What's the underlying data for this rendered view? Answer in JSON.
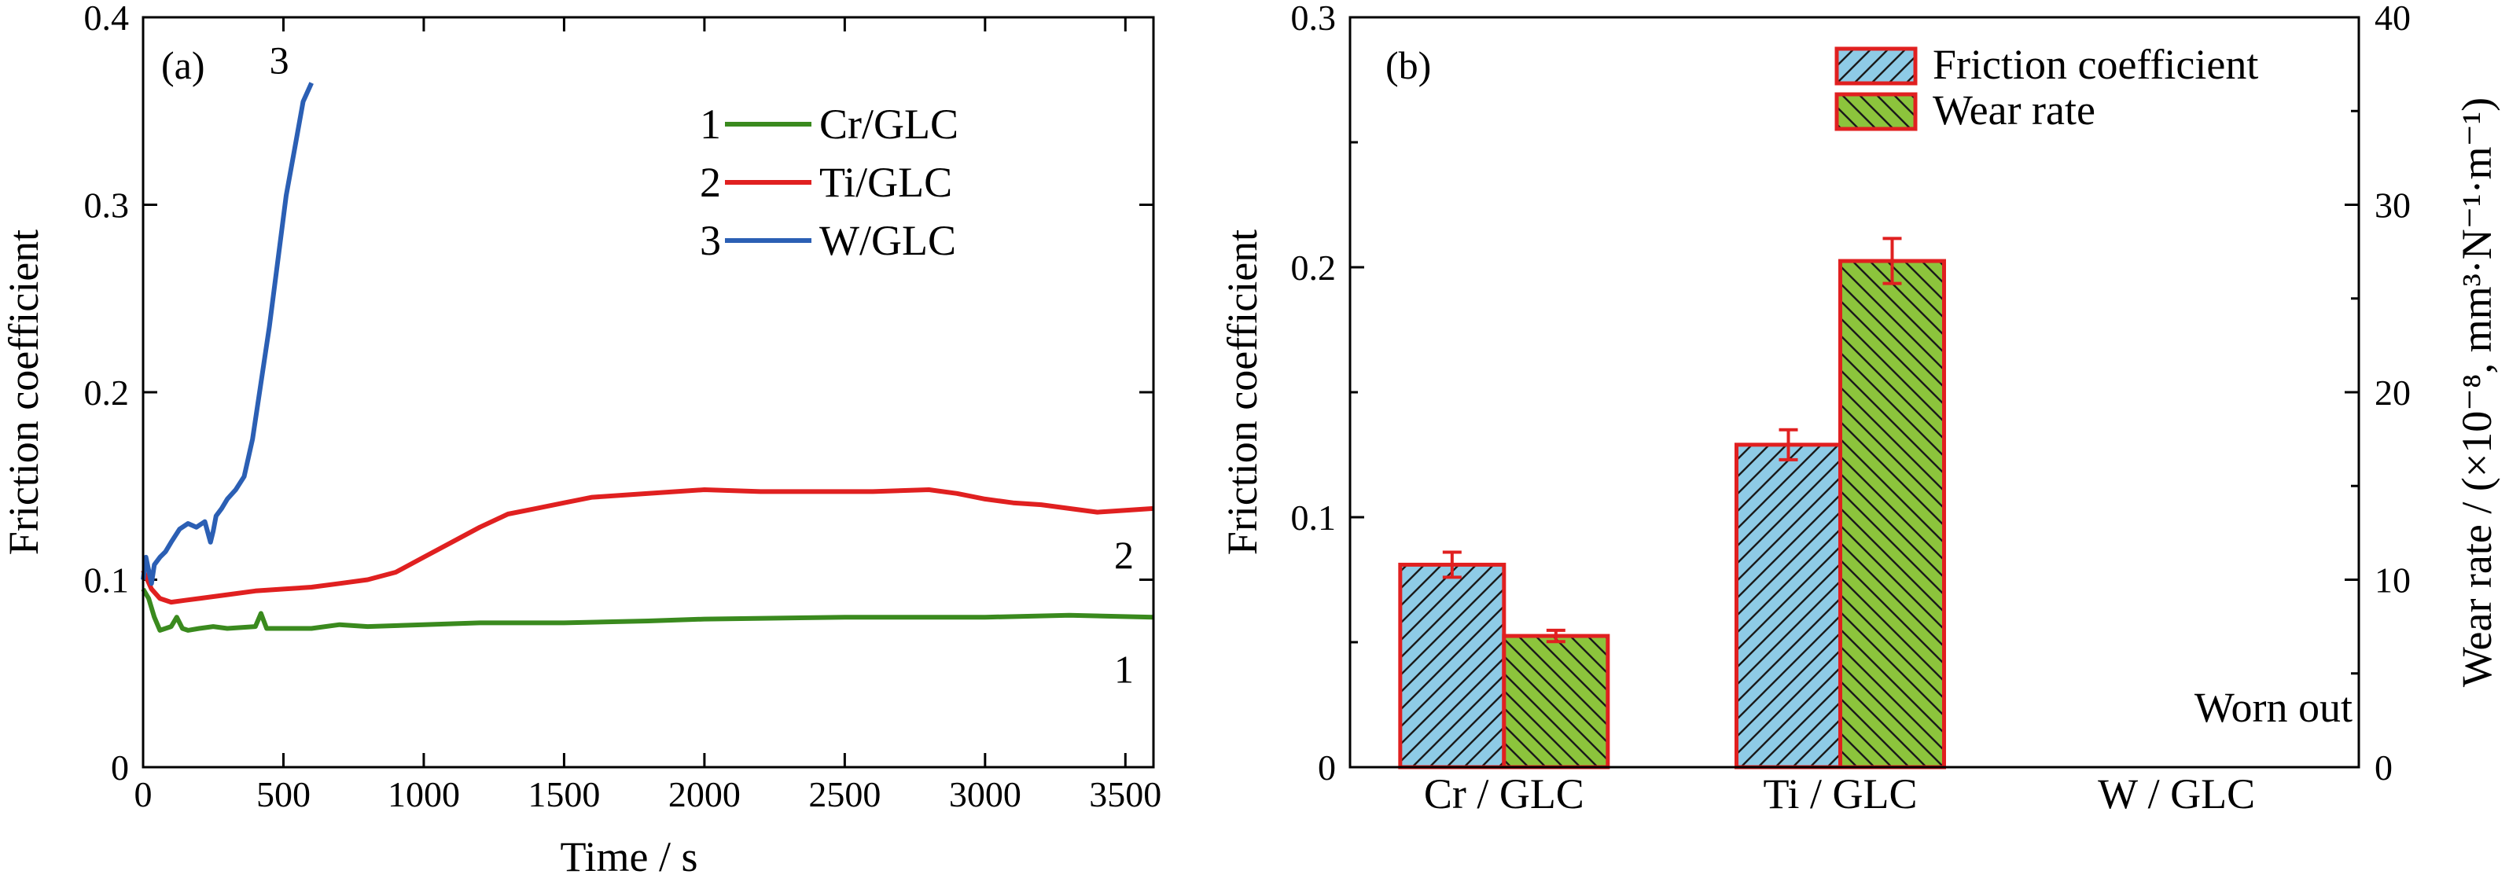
{
  "chart_data": [
    {
      "type": "line",
      "panel_label": "(a)",
      "xlabel": "Time / s",
      "ylabel": "Friction coefficient",
      "xlim": [
        0,
        3600
      ],
      "ylim": [
        0,
        0.4
      ],
      "x_ticks": [
        0,
        500,
        1000,
        1500,
        2000,
        2500,
        3000,
        3500
      ],
      "y_ticks": [
        0,
        0.1,
        0.2,
        0.3,
        0.4
      ],
      "y_tick_labels": [
        "0",
        "0.1",
        "0.2",
        "0.3",
        "0.4"
      ],
      "legend_position": "top-right",
      "series": [
        {
          "id": "1",
          "name": "Cr/GLC",
          "color": "#3a8a1e",
          "x": [
            0,
            20,
            40,
            60,
            80,
            100,
            120,
            140,
            160,
            200,
            250,
            300,
            400,
            420,
            440,
            500,
            600,
            700,
            800,
            1000,
            1200,
            1500,
            1800,
            2000,
            2500,
            3000,
            3300,
            3600
          ],
          "y": [
            0.095,
            0.09,
            0.08,
            0.073,
            0.074,
            0.075,
            0.08,
            0.074,
            0.073,
            0.074,
            0.075,
            0.074,
            0.075,
            0.082,
            0.074,
            0.074,
            0.074,
            0.076,
            0.075,
            0.076,
            0.077,
            0.077,
            0.078,
            0.079,
            0.08,
            0.08,
            0.081,
            0.08
          ]
        },
        {
          "id": "2",
          "name": "Ti/GLC",
          "color": "#e02020",
          "x": [
            0,
            30,
            60,
            100,
            150,
            200,
            300,
            400,
            500,
            600,
            700,
            800,
            900,
            1000,
            1100,
            1200,
            1300,
            1400,
            1500,
            1600,
            1800,
            2000,
            2200,
            2400,
            2600,
            2800,
            2900,
            3000,
            3100,
            3200,
            3300,
            3400,
            3500,
            3600
          ],
          "y": [
            0.105,
            0.095,
            0.09,
            0.088,
            0.089,
            0.09,
            0.092,
            0.094,
            0.095,
            0.096,
            0.098,
            0.1,
            0.104,
            0.112,
            0.12,
            0.128,
            0.135,
            0.138,
            0.141,
            0.144,
            0.146,
            0.148,
            0.147,
            0.147,
            0.147,
            0.148,
            0.146,
            0.143,
            0.141,
            0.14,
            0.138,
            0.136,
            0.137,
            0.138
          ]
        },
        {
          "id": "3",
          "name": "W/GLC",
          "color": "#2b5fb4",
          "x": [
            0,
            10,
            20,
            30,
            40,
            60,
            80,
            100,
            130,
            160,
            190,
            220,
            240,
            250,
            260,
            280,
            300,
            330,
            360,
            390,
            420,
            450,
            480,
            510,
            540,
            570,
            600
          ],
          "y": [
            0.1,
            0.112,
            0.105,
            0.098,
            0.108,
            0.112,
            0.115,
            0.12,
            0.127,
            0.13,
            0.128,
            0.131,
            0.12,
            0.126,
            0.134,
            0.138,
            0.143,
            0.148,
            0.155,
            0.175,
            0.205,
            0.235,
            0.27,
            0.305,
            0.33,
            0.355,
            0.365
          ]
        }
      ]
    },
    {
      "type": "bar",
      "panel_label": "(b)",
      "categories": [
        "Cr / GLC",
        "Ti / GLC",
        "W / GLC"
      ],
      "ylabel_left": "Friction coefficient",
      "ylabel_right": "Wear rate / (×10⁻⁸, mm³·N⁻¹·m⁻¹)",
      "ylim_left": [
        0,
        0.3
      ],
      "ylim_right": [
        0,
        40
      ],
      "y_ticks_left": [
        0,
        0.1,
        0.2,
        0.3
      ],
      "y_tick_labels_left": [
        "0",
        "0.1",
        "0.2",
        "0.3"
      ],
      "y_ticks_right": [
        0,
        10,
        20,
        30,
        40
      ],
      "y_tick_labels_right": [
        "0",
        "10",
        "20",
        "30",
        "40"
      ],
      "legend_position": "top-right",
      "annotation": "Worn out",
      "series": [
        {
          "name": "Friction coefficient",
          "axis": "left",
          "fill": "#8ecbe6",
          "edge": "#e02020",
          "values": [
            0.081,
            0.129,
            null
          ],
          "errors": [
            0.005,
            0.006,
            null
          ]
        },
        {
          "name": "Wear rate",
          "axis": "right",
          "fill": "#8cc43c",
          "edge": "#e02020",
          "values": [
            7.0,
            27.0,
            null
          ],
          "errors": [
            0.3,
            1.2,
            null
          ]
        }
      ]
    }
  ]
}
